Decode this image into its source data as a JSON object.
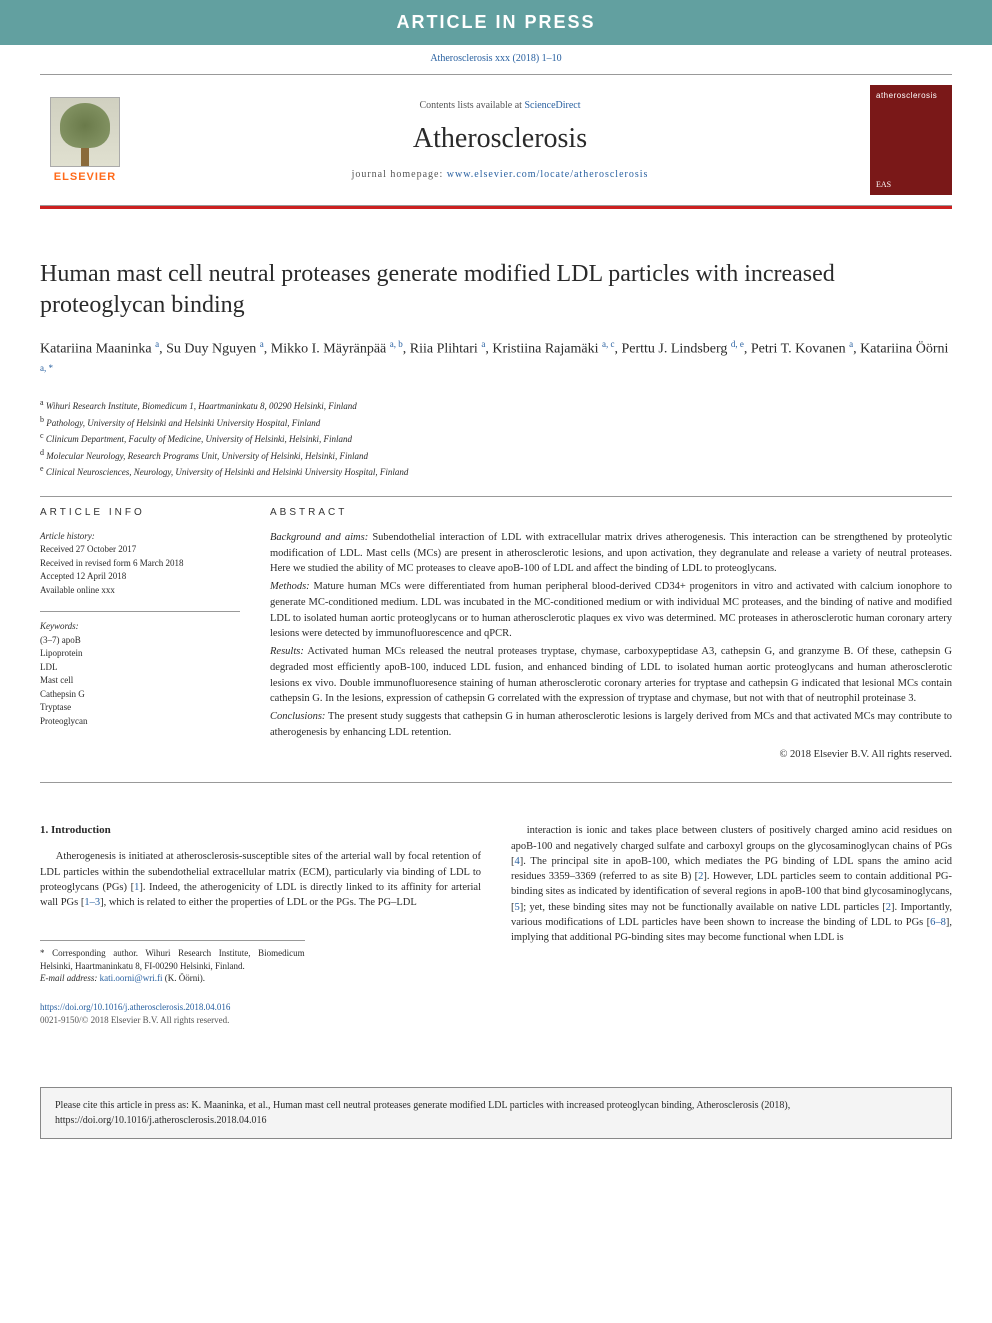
{
  "banner": "ARTICLE IN PRESS",
  "citation_top": "Atherosclerosis xxx (2018) 1–10",
  "header": {
    "elsevier": "ELSEVIER",
    "contents_prefix": "Contents lists available at ",
    "contents_link": "ScienceDirect",
    "journal": "Atherosclerosis",
    "homepage_label": "journal homepage: ",
    "homepage_url": "www.elsevier.com/locate/atherosclerosis",
    "cover_title": "atherosclerosis",
    "cover_footer": "EAS"
  },
  "title": "Human mast cell neutral proteases generate modified LDL particles with increased proteoglycan binding",
  "authors_html": "Katariina Maaninka <sup>a</sup>, Su Duy Nguyen <sup>a</sup>, Mikko I. Mäyränpää <sup>a, b</sup>, Riia Plihtari <sup>a</sup>, Kristiina Rajamäki <sup>a, c</sup>, Perttu J. Lindsberg <sup>d, e</sup>, Petri T. Kovanen <sup>a</sup>, Katariina Öörni <sup>a, *</sup>",
  "affiliations": [
    {
      "sup": "a",
      "text": "Wihuri Research Institute, Biomedicum 1, Haartmaninkatu 8, 00290 Helsinki, Finland"
    },
    {
      "sup": "b",
      "text": "Pathology, University of Helsinki and Helsinki University Hospital, Finland"
    },
    {
      "sup": "c",
      "text": "Clinicum Department, Faculty of Medicine, University of Helsinki, Helsinki, Finland"
    },
    {
      "sup": "d",
      "text": "Molecular Neurology, Research Programs Unit, University of Helsinki, Helsinki, Finland"
    },
    {
      "sup": "e",
      "text": "Clinical Neurosciences, Neurology, University of Helsinki and Helsinki University Hospital, Finland"
    }
  ],
  "article_info": {
    "heading": "ARTICLE INFO",
    "history_label": "Article history:",
    "history": [
      "Received 27 October 2017",
      "Received in revised form 6 March 2018",
      "Accepted 12 April 2018",
      "Available online xxx"
    ],
    "keywords_label": "Keywords:",
    "keywords": [
      "(3–7) apoB",
      "Lipoprotein",
      "LDL",
      "Mast cell",
      "Cathepsin G",
      "Tryptase",
      "Proteoglycan"
    ]
  },
  "abstract": {
    "heading": "ABSTRACT",
    "sections": [
      {
        "label": "Background and aims:",
        "text": " Subendothelial interaction of LDL with extracellular matrix drives atherogenesis. This interaction can be strengthened by proteolytic modification of LDL. Mast cells (MCs) are present in atherosclerotic lesions, and upon activation, they degranulate and release a variety of neutral proteases. Here we studied the ability of MC proteases to cleave apoB-100 of LDL and affect the binding of LDL to proteoglycans."
      },
      {
        "label": "Methods:",
        "text": " Mature human MCs were differentiated from human peripheral blood-derived CD34+ progenitors in vitro and activated with calcium ionophore to generate MC-conditioned medium. LDL was incubated in the MC-conditioned medium or with individual MC proteases, and the binding of native and modified LDL to isolated human aortic proteoglycans or to human atherosclerotic plaques ex vivo was determined. MC proteases in atherosclerotic human coronary artery lesions were detected by immunofluorescence and qPCR."
      },
      {
        "label": "Results:",
        "text": " Activated human MCs released the neutral proteases tryptase, chymase, carboxypeptidase A3, cathepsin G, and granzyme B. Of these, cathepsin G degraded most efficiently apoB-100, induced LDL fusion, and enhanced binding of LDL to isolated human aortic proteoglycans and human atherosclerotic lesions ex vivo. Double immunofluoresence staining of human atherosclerotic coronary arteries for tryptase and cathepsin G indicated that lesional MCs contain cathepsin G. In the lesions, expression of cathepsin G correlated with the expression of tryptase and chymase, but not with that of neutrophil proteinase 3."
      },
      {
        "label": "Conclusions:",
        "text": " The present study suggests that cathepsin G in human atherosclerotic lesions is largely derived from MCs and that activated MCs may contribute to atherogenesis by enhancing LDL retention."
      }
    ],
    "copyright": "© 2018 Elsevier B.V. All rights reserved."
  },
  "body": {
    "intro_heading": "1. Introduction",
    "col1": "Atherogenesis is initiated at atherosclerosis-susceptible sites of the arterial wall by focal retention of LDL particles within the subendothelial extracellular matrix (ECM), particularly via binding of LDL to proteoglycans (PGs) [1]. Indeed, the atherogenicity of LDL is directly linked to its affinity for arterial wall PGs [1–3], which is related to either the properties of LDL or the PGs. The PG–LDL",
    "col2": "interaction is ionic and takes place between clusters of positively charged amino acid residues on apoB-100 and negatively charged sulfate and carboxyl groups on the glycosaminoglycan chains of PGs [4]. The principal site in apoB-100, which mediates the PG binding of LDL spans the amino acid residues 3359–3369 (referred to as site B) [2]. However, LDL particles seem to contain additional PG-binding sites as indicated by identification of several regions in apoB-100 that bind glycosaminoglycans, [5]; yet, these binding sites may not be functionally available on native LDL particles [2]. Importantly, various modifications of LDL particles have been shown to increase the binding of LDL to PGs [6–8], implying that additional PG-binding sites may become functional when LDL is"
  },
  "footnote": {
    "corr": "* Corresponding author. Wihuri Research Institute, Biomedicum Helsinki, Haartmaninkatu 8, FI-00290 Helsinki, Finland.",
    "email_label": "E-mail address: ",
    "email": "kati.oorni@wri.fi",
    "email_suffix": " (K. Öörni)."
  },
  "doi": {
    "url": "https://doi.org/10.1016/j.atherosclerosis.2018.04.016",
    "issn": "0021-9150/© 2018 Elsevier B.V. All rights reserved."
  },
  "citebox": "Please cite this article in press as: K. Maaninka, et al., Human mast cell neutral proteases generate modified LDL particles with increased proteoglycan binding, Atherosclerosis (2018), https://doi.org/10.1016/j.atherosclerosis.2018.04.016",
  "colors": {
    "banner_bg": "#62a0a0",
    "link": "#2860a0",
    "red_bar": "#cc2020",
    "elsevier_orange": "#ff6a1a",
    "cover_bg": "#7a1818"
  }
}
